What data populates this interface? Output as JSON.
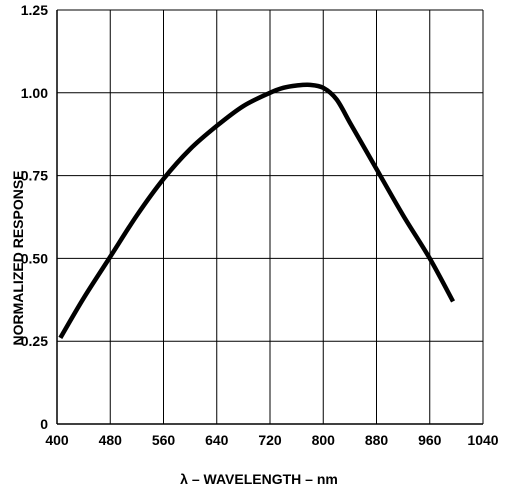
{
  "chart_data": {
    "type": "line",
    "xlabel": "λ – WAVELENGTH – nm",
    "ylabel": "NORMALIZED RESPONSE",
    "xlim": [
      400,
      1040
    ],
    "ylim": [
      0,
      1.25
    ],
    "x_ticks": [
      "400",
      "480",
      "560",
      "640",
      "720",
      "800",
      "880",
      "960",
      "1040"
    ],
    "y_ticks": [
      "0",
      "0.25",
      "0.50",
      "0.75",
      "1.00",
      "1.25"
    ],
    "grid": true,
    "series": [
      {
        "x": [
          405,
          440,
          480,
          520,
          560,
          600,
          640,
          680,
          720,
          740,
          760,
          780,
          800,
          820,
          840,
          860,
          880,
          920,
          960,
          995
        ],
        "y": [
          0.26,
          0.38,
          0.505,
          0.63,
          0.74,
          0.83,
          0.9,
          0.96,
          1.0,
          1.015,
          1.022,
          1.024,
          1.015,
          0.98,
          0.91,
          0.84,
          0.77,
          0.63,
          0.5,
          0.37
        ]
      }
    ]
  }
}
